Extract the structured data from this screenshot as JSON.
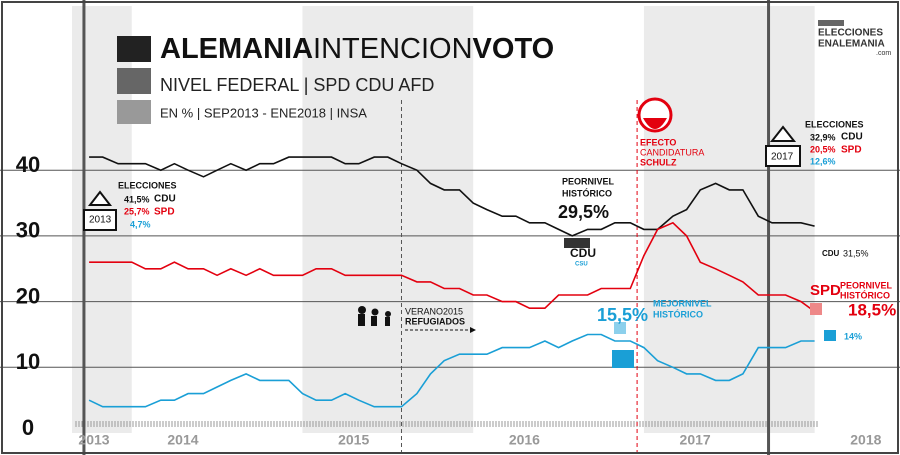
{
  "chart_data": {
    "type": "line",
    "title_parts": [
      "ALEMANIA",
      "INTENCION",
      "VOTO"
    ],
    "subtitle": "NIVEL FEDERAL | SPD CDU AFD",
    "note": "EN % | SEP2013 - ENE2018 | INSA",
    "x": [
      2013.75,
      2013.83,
      2013.92,
      2014.0,
      2014.08,
      2014.17,
      2014.25,
      2014.33,
      2014.42,
      2014.5,
      2014.58,
      2014.67,
      2014.75,
      2014.83,
      2014.92,
      2015.0,
      2015.08,
      2015.17,
      2015.25,
      2015.33,
      2015.42,
      2015.5,
      2015.58,
      2015.67,
      2015.75,
      2015.83,
      2015.92,
      2016.0,
      2016.08,
      2016.17,
      2016.25,
      2016.33,
      2016.42,
      2016.5,
      2016.58,
      2016.67,
      2016.75,
      2016.83,
      2016.92,
      2017.0,
      2017.08,
      2017.17,
      2017.25,
      2017.33,
      2017.42,
      2017.5,
      2017.58,
      2017.67,
      2017.75,
      2017.83,
      2017.92,
      2018.0
    ],
    "series": [
      {
        "name": "CDU",
        "color": "#111111",
        "values": [
          42,
          42,
          41,
          41,
          41,
          40,
          41,
          40,
          39,
          40,
          41,
          40,
          41,
          41,
          42,
          42,
          42,
          42,
          41,
          41,
          42,
          42,
          41,
          40,
          38,
          37,
          37,
          35,
          34,
          33,
          33,
          32,
          32,
          31,
          30,
          31,
          31,
          32,
          32,
          31,
          31,
          33,
          34,
          37,
          38,
          37,
          37,
          33,
          32,
          32,
          32,
          31.5
        ]
      },
      {
        "name": "SPD",
        "color": "#e3000f",
        "values": [
          26,
          26,
          26,
          26,
          25,
          25,
          26,
          25,
          25,
          24,
          25,
          24,
          25,
          24,
          24,
          24,
          25,
          25,
          24,
          24,
          24,
          24,
          24,
          23,
          23,
          22,
          22,
          21,
          21,
          20,
          20,
          19,
          19,
          21,
          21,
          21,
          22,
          22,
          22,
          27,
          31,
          32,
          30,
          26,
          25,
          24,
          23,
          21,
          21,
          21,
          20,
          18.5
        ]
      },
      {
        "name": "AFD",
        "color": "#1a9fd6",
        "values": [
          5,
          4,
          4,
          4,
          4,
          5,
          5,
          6,
          6,
          7,
          8,
          9,
          8,
          8,
          8,
          6,
          5,
          5,
          6,
          5,
          4,
          4,
          4,
          6,
          9,
          11,
          12,
          12,
          12,
          13,
          13,
          13,
          14,
          13,
          14,
          15,
          15,
          14,
          14,
          13,
          11,
          10,
          9,
          9,
          8,
          8,
          9,
          13,
          13,
          13,
          14,
          14
        ]
      }
    ],
    "xlim": [
      2013.65,
      2018.5
    ],
    "xticks": [
      2013,
      2014,
      2015,
      2016,
      2017,
      2018
    ],
    "ylim": [
      0,
      65
    ],
    "yticks": [
      0,
      10,
      20,
      30,
      40
    ],
    "grid": true,
    "vlines": [
      {
        "x": 2013.72,
        "style": "solid",
        "color": "#555555"
      },
      {
        "x": 2015.58,
        "style": "dashed",
        "color": "#555555"
      },
      {
        "x": 2016.96,
        "style": "dashed",
        "color": "#e3000f"
      },
      {
        "x": 2017.73,
        "style": "solid",
        "color": "#555555"
      }
    ],
    "annotations": [
      "ELECCIONES",
      "41,5%",
      "CDU",
      "25,7%",
      "SPD",
      "4,7%",
      "2013",
      "ELECCIONES",
      "32,9%",
      "CDU",
      "20,5%",
      "SPD",
      "12,6%",
      "2017",
      "PEORNIVEL",
      "HISTÓRICO",
      "29,5%",
      "CDU",
      "CSU",
      "EFECTO",
      "CANDIDATURA",
      "SCHULZ",
      "VERANO2015",
      "REFUGIADOS",
      "15,5%",
      "MEJORNIVEL",
      "HISTÓRICO",
      "CDU",
      "31,5%",
      "SPD",
      "PEORNIVEL",
      "HISTÓRICO",
      "18,5%",
      "14%",
      "ELECCIONES",
      "ENALEMANIA",
      ".com"
    ]
  }
}
